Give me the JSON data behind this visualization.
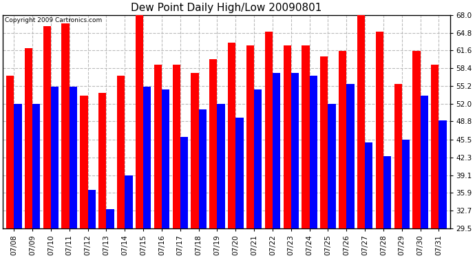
{
  "title": "Dew Point Daily High/Low 20090801",
  "copyright": "Copyright 2009 Cartronics.com",
  "dates": [
    "07/08",
    "07/09",
    "07/10",
    "07/11",
    "07/12",
    "07/13",
    "07/14",
    "07/15",
    "07/16",
    "07/17",
    "07/18",
    "07/19",
    "07/20",
    "07/21",
    "07/22",
    "07/23",
    "07/24",
    "07/25",
    "07/26",
    "07/27",
    "07/28",
    "07/29",
    "07/30",
    "07/31"
  ],
  "highs": [
    57.0,
    62.0,
    66.0,
    66.5,
    53.5,
    54.0,
    57.0,
    69.0,
    59.0,
    59.0,
    57.5,
    60.0,
    63.0,
    62.5,
    65.0,
    62.5,
    62.5,
    60.5,
    61.5,
    68.0,
    65.0,
    55.5,
    61.5,
    59.0
  ],
  "lows": [
    52.0,
    52.0,
    55.0,
    55.0,
    36.5,
    33.0,
    39.0,
    55.0,
    54.5,
    46.0,
    51.0,
    52.0,
    49.5,
    54.5,
    57.5,
    57.5,
    57.0,
    52.0,
    55.5,
    45.0,
    42.5,
    45.5,
    53.5,
    49.0
  ],
  "ylim_min": 29.5,
  "ylim_max": 68.0,
  "yticks": [
    29.5,
    32.7,
    35.9,
    39.1,
    42.3,
    45.5,
    48.8,
    52.0,
    55.2,
    58.4,
    61.6,
    64.8,
    68.0
  ],
  "bar_color_high": "#ff0000",
  "bar_color_low": "#0000ff",
  "bg_color": "#ffffff",
  "grid_color": "#bbbbbb",
  "title_fontsize": 11,
  "tick_fontsize": 7.5
}
